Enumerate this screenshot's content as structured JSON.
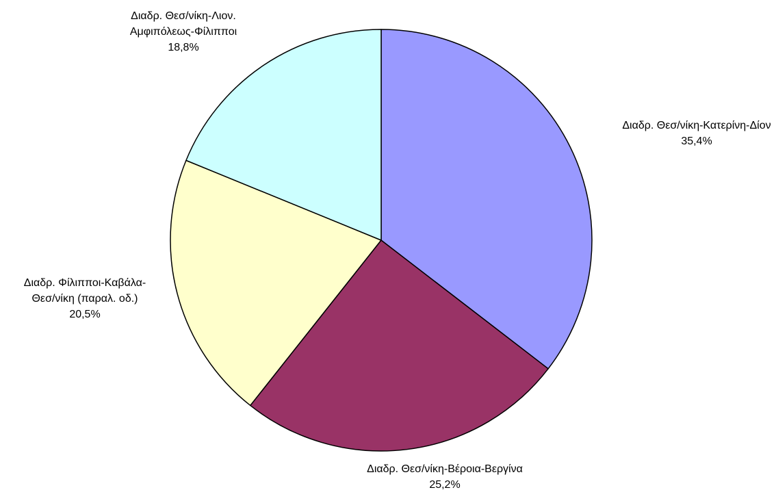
{
  "chart_data": {
    "type": "pie",
    "title": "",
    "slices": [
      {
        "label_lines": [
          "Διαδρ. Θεσ/νίκη-Κατερίνη-Δίον"
        ],
        "value_label": "35,4%",
        "value": 35.4,
        "color": "#9999ff"
      },
      {
        "label_lines": [
          "Διαδρ. Θεσ/νίκη-Βέροια-Βεργίνα"
        ],
        "value_label": "25,2%",
        "value": 25.2,
        "color": "#993366"
      },
      {
        "label_lines": [
          "Διαδρ. Φίλιπποι-Καβάλα-",
          "Θεσ/νίκη (παραλ. οδ.)"
        ],
        "value_label": "20,5%",
        "value": 20.5,
        "color": "#ffffcc"
      },
      {
        "label_lines": [
          "Διαδρ. Θεσ/νίκη-Λιον.",
          "Αμφιπόλεως-Φίλιπποι"
        ],
        "value_label": "18,8%",
        "value": 18.8,
        "color": "#ccffff"
      }
    ],
    "start_angle": "12 o'clock",
    "direction": "clockwise",
    "legend": "none"
  }
}
